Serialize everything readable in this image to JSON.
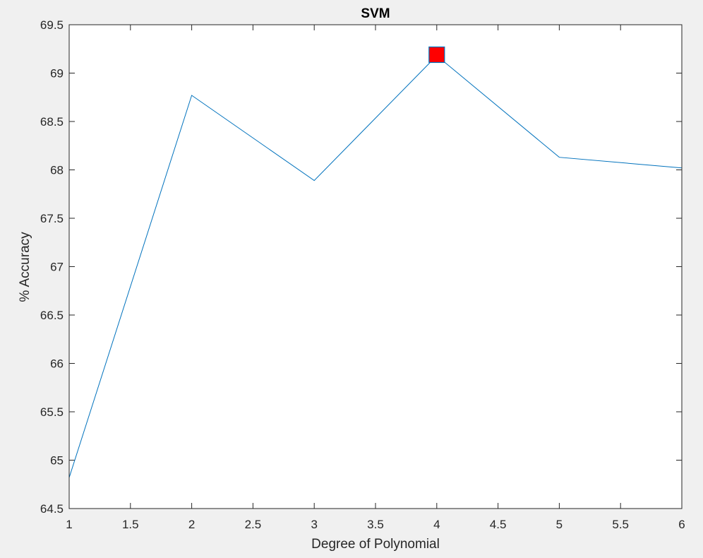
{
  "chart_data": {
    "type": "line",
    "title": "SVM",
    "xlabel": "Degree of Polynomial",
    "ylabel": "% Accuracy",
    "xlim": [
      1,
      6
    ],
    "ylim": [
      64.5,
      69.5
    ],
    "xticks": [
      1,
      1.5,
      2,
      2.5,
      3,
      3.5,
      4,
      4.5,
      5,
      5.5,
      6
    ],
    "xtick_labels": [
      "1",
      "1.5",
      "2",
      "2.5",
      "3",
      "3.5",
      "4",
      "4.5",
      "5",
      "5.5",
      "6"
    ],
    "yticks": [
      64.5,
      65,
      65.5,
      66,
      66.5,
      67,
      67.5,
      68,
      68.5,
      69,
      69.5
    ],
    "ytick_labels": [
      "64.5",
      "65",
      "65.5",
      "66",
      "66.5",
      "67",
      "67.5",
      "68",
      "68.5",
      "69",
      "69.5"
    ],
    "grid": false,
    "series": [
      {
        "x": [
          1,
          2,
          3,
          4,
          5,
          6
        ],
        "values": [
          64.82,
          68.77,
          67.89,
          69.18,
          68.13,
          68.02
        ],
        "color": "#0072bd"
      }
    ],
    "highlight": {
      "x": 4,
      "y": 69.19,
      "marker": "square",
      "fill": "#ff0000",
      "edge": "#0072bd"
    }
  }
}
